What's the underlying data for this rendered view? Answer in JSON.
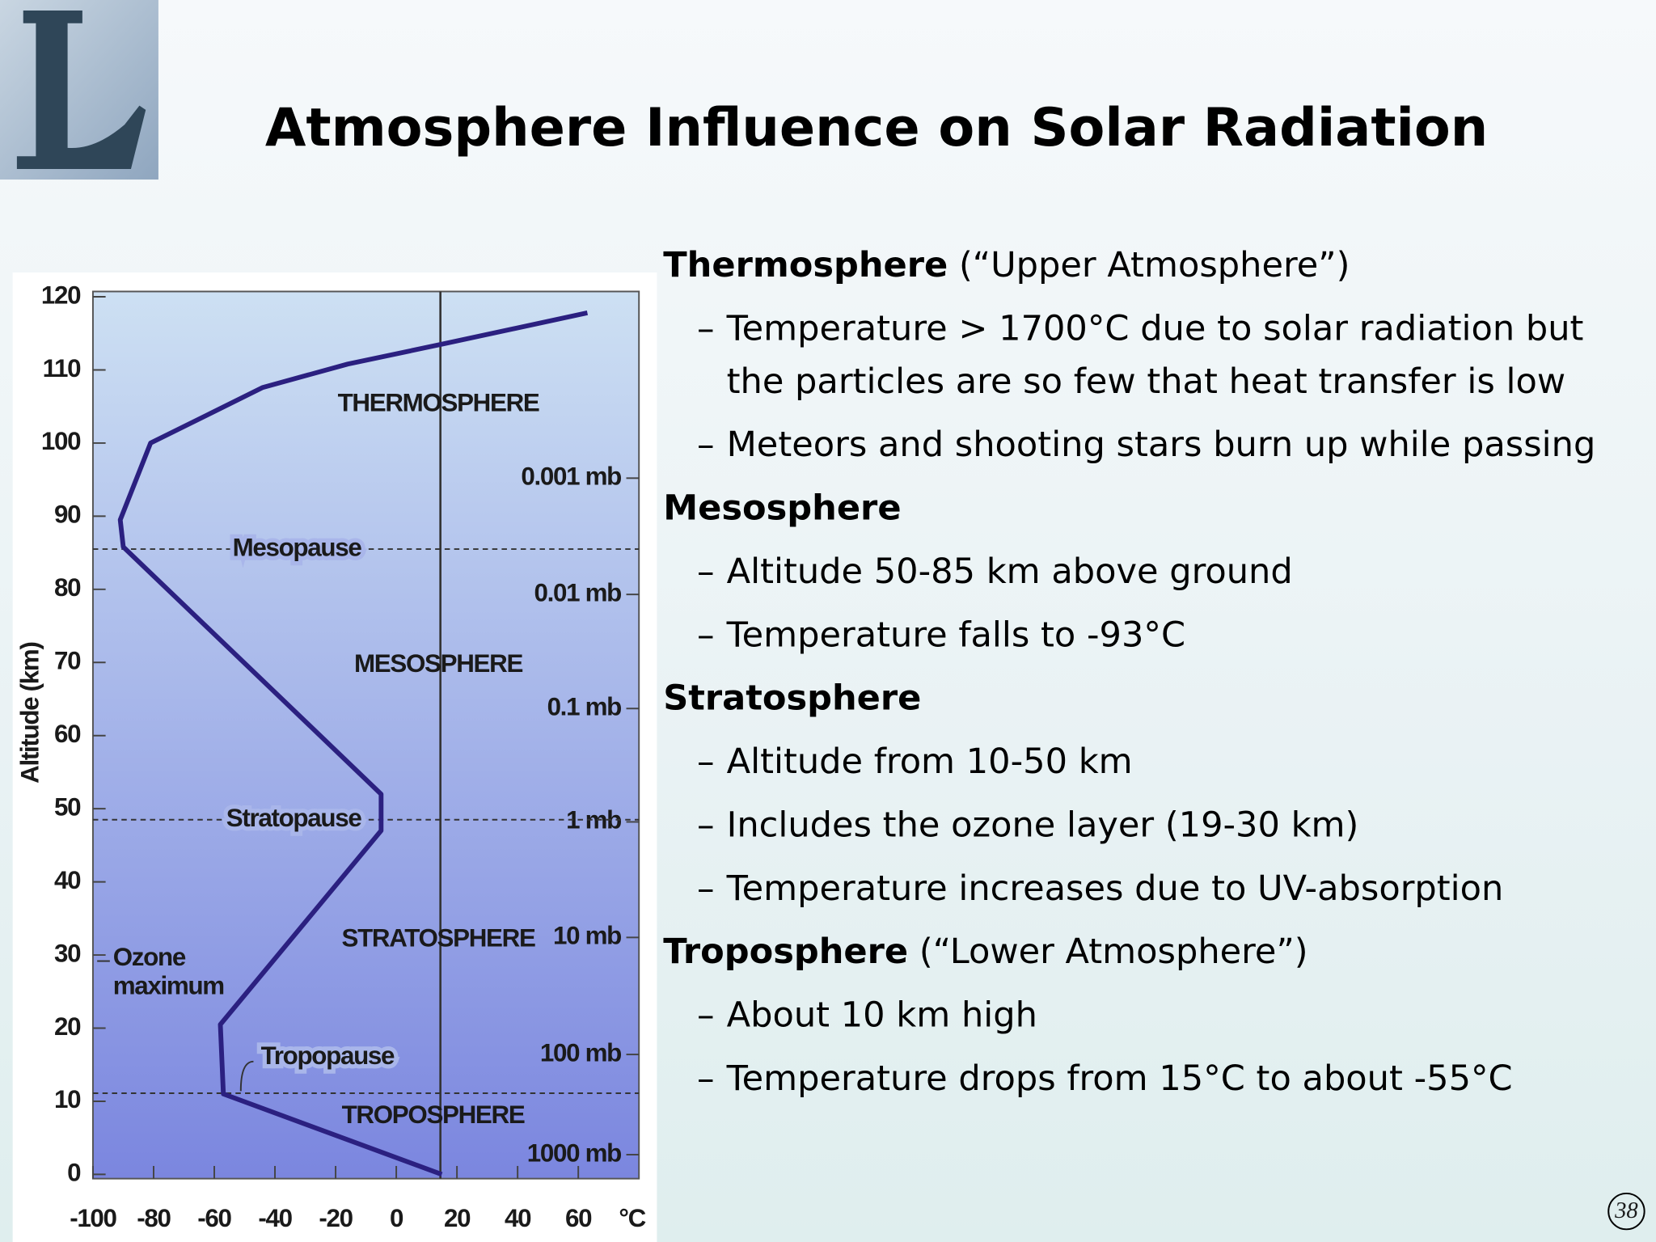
{
  "title": "Atmosphere Influence on Solar Radiation",
  "chart_data": {
    "type": "line",
    "y_label": "Altitude (km)",
    "x_unit": "°C",
    "color": "#2b2080",
    "x": [
      15,
      -57,
      -58,
      -5,
      -5,
      -90,
      -91,
      -81,
      -44,
      -16,
      16,
      63
    ],
    "values": [
      0,
      11,
      20.5,
      47,
      52,
      85.8,
      89.5,
      100,
      107.6,
      110.8,
      113.6,
      117.8
    ],
    "xlim": [
      -100,
      80
    ],
    "xticks": [
      -100,
      -80,
      -60,
      -40,
      -20,
      0,
      20,
      40,
      60
    ],
    "ylim": [
      0,
      120
    ],
    "yticks": [
      0,
      10,
      20,
      30,
      40,
      50,
      60,
      70,
      80,
      90,
      100,
      110,
      120
    ],
    "pressure_ticks": [
      {
        "value": 95.2,
        "label": "0.001 mb"
      },
      {
        "value": 79.3,
        "label": "0.01 mb"
      },
      {
        "value": 63.7,
        "label": "0.1 mb"
      },
      {
        "value": 48.2,
        "label": "1 mb"
      },
      {
        "value": 32.4,
        "label": "10 mb"
      },
      {
        "value": 16.4,
        "label": "100 mb"
      },
      {
        "value": 2.7,
        "label": "1000 mb"
      }
    ],
    "boundaries": [
      {
        "label": "Mesopause",
        "value": 85.5
      },
      {
        "label": "Stratopause",
        "value": 48.5
      },
      {
        "label": "Tropopause",
        "value": 11.1
      }
    ],
    "annotations": [
      {
        "lines": [
          "THERMOSPHERE"
        ]
      },
      {
        "lines": [
          "MESOSPHERE"
        ]
      },
      {
        "lines": [
          "STRATOSPHERE"
        ]
      },
      {
        "lines": [
          "Ozone",
          "maximum"
        ]
      },
      {
        "lines": [
          "TROPOSPHERE"
        ]
      }
    ]
  },
  "sections": [
    {
      "heading": "Thermosphere",
      "note": "(“Upper Atmosphere”)",
      "items": [
        "Temperature > 1700°C due to solar radiation but the particles are so few that heat transfer is low",
        "Meteors and shooting stars burn up while passing"
      ]
    },
    {
      "heading": "Mesosphere",
      "items": [
        "Altitude 50-85 km above ground",
        "Temperature falls to -93°C"
      ]
    },
    {
      "heading": "Stratosphere",
      "items": [
        "Altitude from 10-50 km",
        "Includes the ozone layer (19-30 km)",
        "Temperature increases due to UV-absorption"
      ]
    },
    {
      "heading": "Troposphere",
      "note": "(“Lower Atmosphere”)",
      "items": [
        "About 10 km high",
        "Temperature drops from 15°C to about -55°C"
      ]
    }
  ],
  "page_number": "38"
}
